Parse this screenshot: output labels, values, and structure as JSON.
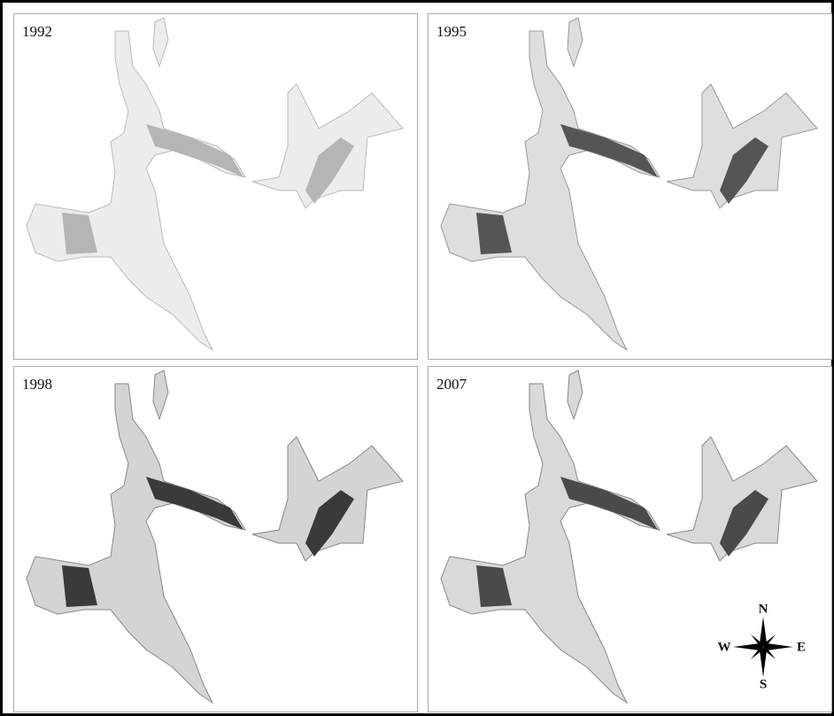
{
  "panels": [
    {
      "label": "1992"
    },
    {
      "label": "1995"
    },
    {
      "label": "1998"
    },
    {
      "label": "2007"
    }
  ],
  "compass": {
    "north": "N",
    "south": "S",
    "west": "W",
    "east": "E"
  }
}
